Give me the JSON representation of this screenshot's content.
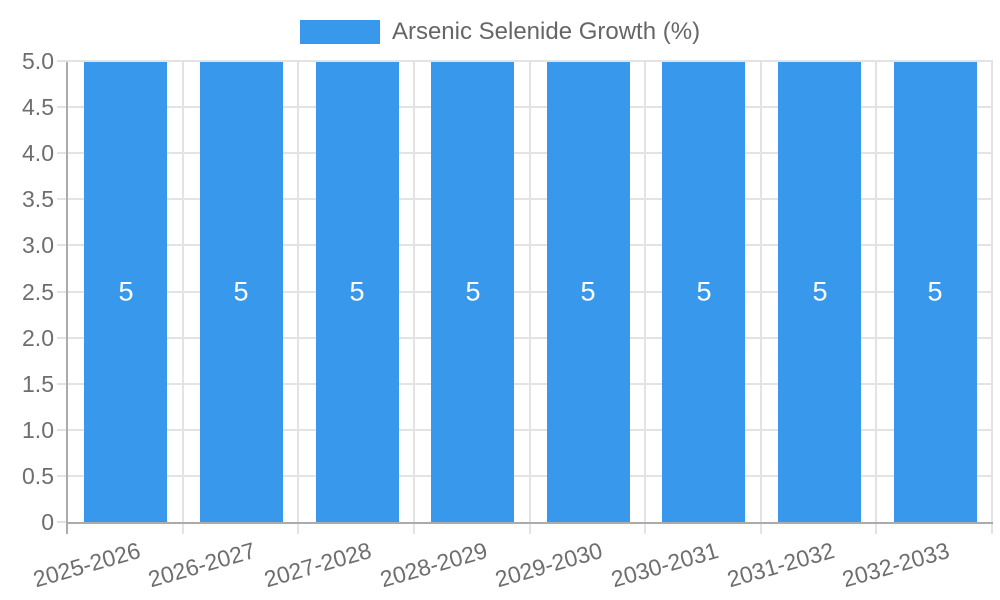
{
  "legend": {
    "items": [
      {
        "label": "Arsenic Selenide Growth (%)",
        "color": "#3898EC"
      }
    ]
  },
  "chart_data": {
    "type": "bar",
    "title": "Arsenic Selenide Growth (%)",
    "categories": [
      "2025-2026",
      "2026-2027",
      "2027-2028",
      "2028-2029",
      "2029-2030",
      "2030-2031",
      "2031-2032",
      "2032-2033"
    ],
    "series": [
      {
        "name": "Arsenic Selenide Growth (%)",
        "values": [
          5,
          5,
          5,
          5,
          5,
          5,
          5,
          5
        ]
      }
    ],
    "bar_value_labels": [
      "5",
      "5",
      "5",
      "5",
      "5",
      "5",
      "5",
      "5"
    ],
    "xlabel": "",
    "ylabel": "",
    "ylim": [
      0,
      5
    ],
    "ytick_step": 0.5,
    "ytick_labels": [
      "0",
      "0.5",
      "1.0",
      "1.5",
      "2.0",
      "2.5",
      "3.0",
      "3.5",
      "4.0",
      "4.5",
      "5.0"
    ],
    "legend_position": "top",
    "grid": true,
    "x_label_rotation_deg": -16,
    "colors": {
      "bar": "#3898EC",
      "grid": "#e3e3e3",
      "axis": "#ababab",
      "tick_label": "#6e6e6e",
      "legend_label": "#666666",
      "bar_label": "#ffffff"
    }
  }
}
